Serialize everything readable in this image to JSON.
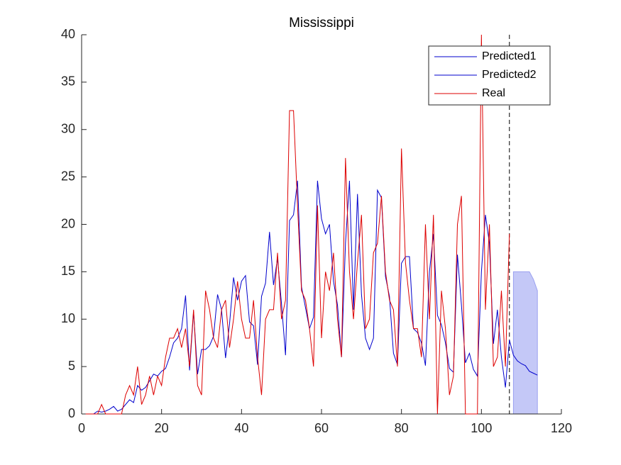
{
  "chart_data": {
    "type": "line",
    "title": "Mississippi",
    "xlim": [
      0,
      120
    ],
    "xticks": [
      0,
      20,
      40,
      60,
      80,
      100,
      120
    ],
    "ylim": [
      0,
      40
    ],
    "yticks": [
      0,
      5,
      10,
      15,
      20,
      25,
      30,
      35,
      40
    ],
    "vline": 107,
    "band": {
      "color": "#c4c8f7",
      "x": [
        108,
        109,
        110,
        111,
        112,
        113,
        114
      ],
      "upper": [
        15,
        15,
        15,
        15,
        15,
        14.2,
        13
      ],
      "lower": [
        0,
        0,
        0,
        0,
        0,
        0,
        0
      ]
    },
    "series": [
      {
        "name": "Predicted1",
        "color": "#0000cc",
        "x": [
          1,
          2,
          3,
          4,
          5,
          6,
          7,
          8,
          9,
          10,
          11,
          12,
          13,
          14,
          15,
          16,
          17,
          18,
          19,
          20,
          21,
          22,
          23,
          24,
          25,
          26,
          27,
          28,
          29,
          30,
          31,
          32,
          33,
          34,
          35,
          36,
          37,
          38,
          39,
          40,
          41,
          42,
          43,
          44,
          45,
          46,
          47,
          48,
          49,
          50,
          51,
          52,
          53,
          54,
          55,
          56,
          57,
          58,
          59,
          60,
          61,
          62,
          63,
          64,
          65,
          66,
          67,
          68,
          69,
          70,
          71,
          72,
          73,
          74,
          75,
          76,
          77,
          78,
          79,
          80,
          81,
          82,
          83,
          84,
          85,
          86,
          87,
          88,
          89,
          90,
          91,
          92,
          93,
          94,
          95,
          96,
          97,
          98,
          99,
          100,
          101,
          102,
          103,
          104,
          105,
          106,
          107
        ],
        "values": [
          0,
          0,
          0,
          0.3,
          0.2,
          0.3,
          0.5,
          0.8,
          0.3,
          0.5,
          1,
          1.5,
          1.2,
          3,
          2.5,
          2.8,
          3.5,
          4.2,
          4,
          4.5,
          4.8,
          6,
          7.5,
          8,
          9,
          12.5,
          4.6,
          10.8,
          4.2,
          6.8,
          6.8,
          7.2,
          8.2,
          12.6,
          11,
          5.9,
          9.5,
          14.4,
          12,
          14,
          14.6,
          9.7,
          9.3,
          5.2,
          12.4,
          13.8,
          19.2,
          13.6,
          16.4,
          11.6,
          6.2,
          20.4,
          21,
          24.6,
          13.4,
          11.2,
          9,
          10.2,
          24.6,
          20.6,
          19,
          20,
          14,
          11.5,
          6,
          18,
          24.6,
          11,
          23.2,
          12.6,
          8,
          6.8,
          8,
          23.6,
          22.8,
          14.5,
          12.4,
          6.4,
          5.2,
          15.9,
          16.6,
          16.6,
          9,
          8.6,
          7.5,
          5.1,
          15,
          19,
          10.4,
          9.4,
          7.5,
          4.8,
          4.4,
          16.8,
          11.5,
          5.4,
          6.4,
          4.7,
          4,
          15,
          21,
          18,
          7.4,
          11,
          6,
          2.8,
          7.8
        ]
      },
      {
        "name": "Predicted2",
        "color": "#0000cc",
        "x": [
          107,
          108,
          109,
          110,
          111,
          112,
          113,
          114
        ],
        "values": [
          7.8,
          6.2,
          5.6,
          5.3,
          5.1,
          4.5,
          4.3,
          4.1
        ]
      },
      {
        "name": "Real",
        "color": "#dd0000",
        "x": [
          1,
          2,
          3,
          4,
          5,
          6,
          7,
          8,
          9,
          10,
          11,
          12,
          13,
          14,
          15,
          16,
          17,
          18,
          19,
          20,
          21,
          22,
          23,
          24,
          25,
          26,
          27,
          28,
          29,
          30,
          31,
          32,
          33,
          34,
          35,
          36,
          37,
          38,
          39,
          40,
          41,
          42,
          43,
          44,
          45,
          46,
          47,
          48,
          49,
          50,
          51,
          52,
          53,
          54,
          55,
          56,
          57,
          58,
          59,
          60,
          61,
          62,
          63,
          64,
          65,
          66,
          67,
          68,
          69,
          70,
          71,
          72,
          73,
          74,
          75,
          76,
          77,
          78,
          79,
          80,
          81,
          82,
          83,
          84,
          85,
          86,
          87,
          88,
          89,
          90,
          91,
          92,
          93,
          94,
          95,
          96,
          97,
          98,
          99,
          100,
          101,
          102,
          103,
          104,
          105,
          106,
          107
        ],
        "values": [
          0,
          0,
          0,
          0,
          1,
          0,
          0,
          0,
          0,
          0,
          2,
          3,
          2,
          5,
          1,
          2,
          4,
          2,
          4,
          3,
          6,
          8,
          8,
          9,
          7,
          9,
          5,
          11,
          3,
          2,
          13,
          11,
          8,
          7,
          11,
          12,
          7,
          10,
          14,
          10,
          8,
          8,
          12,
          6,
          2,
          10,
          11,
          11,
          17,
          10,
          12,
          32,
          32,
          22,
          13,
          12,
          9,
          5,
          22,
          8,
          15,
          13,
          17,
          10,
          6,
          27,
          15,
          10,
          16,
          21,
          9,
          10,
          17,
          18,
          23,
          15,
          12,
          11,
          5,
          28,
          16,
          12,
          9,
          9,
          6,
          20,
          10,
          21,
          0,
          13,
          9,
          2,
          4,
          20,
          23,
          0,
          0,
          0,
          0,
          40,
          11,
          20,
          5,
          6,
          13,
          5,
          19
        ]
      }
    ]
  }
}
